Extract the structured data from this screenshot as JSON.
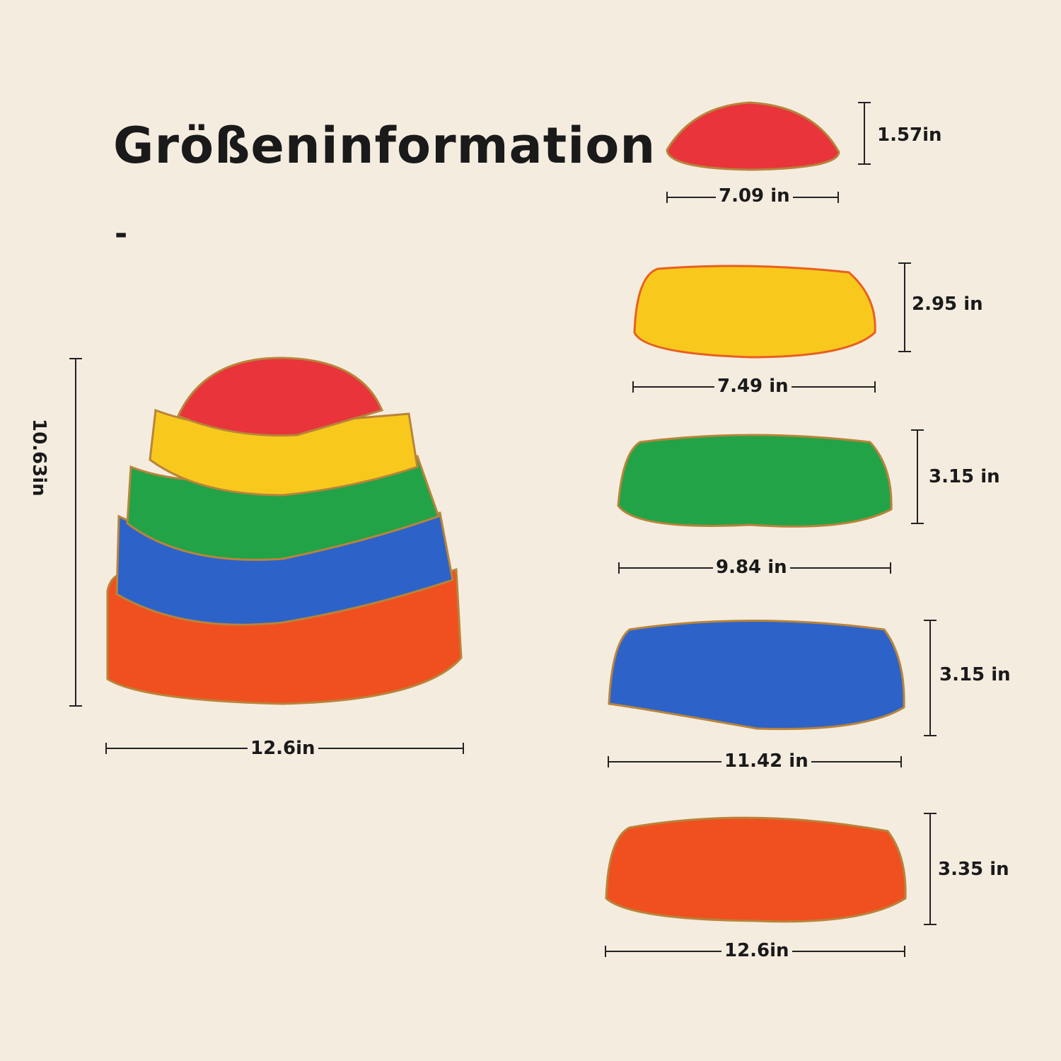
{
  "title": "Größeninformation",
  "title_dash": "-",
  "colors": {
    "background": "#f4ecdf",
    "red": "#e8343a",
    "yellow": "#f8c91c",
    "green": "#22a347",
    "blue": "#2d63c8",
    "orange": "#f0501f",
    "rim": "#b8843a"
  },
  "stack": {
    "height": "10.63in",
    "width": "12.6in"
  },
  "stones": [
    {
      "color": "red",
      "width": "7.09 in",
      "height": "1.57in"
    },
    {
      "color": "yellow",
      "width": "7.49 in",
      "height": "2.95 in"
    },
    {
      "color": "green",
      "width": "9.84 in",
      "height": "3.15 in"
    },
    {
      "color": "blue",
      "width": "11.42 in",
      "height": "3.15 in"
    },
    {
      "color": "orange",
      "width": "12.6in",
      "height": "3.35 in"
    }
  ]
}
